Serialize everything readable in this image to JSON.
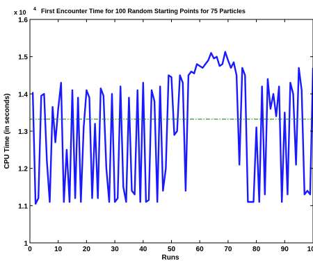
{
  "chart_data": {
    "type": "line",
    "title": "First Encounter Time for 100 Random Starting Points for 75 Particles",
    "xlabel": "Runs",
    "ylabel": "CPU Time (in seconds)",
    "y_multiplier": "x 10",
    "y_exponent": "4",
    "xlim": [
      0,
      100
    ],
    "ylim": [
      1.0,
      1.6
    ],
    "xticks": [
      0,
      10,
      20,
      30,
      40,
      50,
      60,
      70,
      80,
      90,
      100
    ],
    "xtick_labels": [
      "0",
      "10",
      "20",
      "30",
      "40",
      "50",
      "60",
      "70",
      "80",
      "90",
      "100"
    ],
    "yticks": [
      1.0,
      1.1,
      1.2,
      1.3,
      1.4,
      1.5,
      1.6
    ],
    "ytick_labels": [
      "1",
      "1.1",
      "1.2",
      "1.3",
      "1.4",
      "1.5",
      "1.6"
    ],
    "grid": false,
    "series": [
      {
        "style": "solid",
        "color": "#1a1aff",
        "x": [
          1,
          2,
          3,
          4,
          5,
          6,
          7,
          8,
          9,
          10,
          11,
          12,
          13,
          14,
          15,
          16,
          17,
          18,
          19,
          20,
          21,
          22,
          23,
          24,
          25,
          26,
          27,
          28,
          29,
          30,
          31,
          32,
          33,
          34,
          35,
          36,
          37,
          38,
          39,
          40,
          41,
          42,
          43,
          44,
          45,
          46,
          47,
          48,
          49,
          50,
          51,
          52,
          53,
          54,
          55,
          56,
          57,
          58,
          59,
          60,
          61,
          62,
          63,
          64,
          65,
          66,
          67,
          68,
          69,
          70,
          71,
          72,
          73,
          74,
          75,
          76,
          77,
          78,
          79,
          80,
          81,
          82,
          83,
          84,
          85,
          86,
          87,
          88,
          89,
          90,
          91,
          92,
          93,
          94,
          95,
          96,
          97,
          98,
          99,
          100
        ],
        "y": [
          1.405,
          1.105,
          1.12,
          1.395,
          1.4,
          1.22,
          1.11,
          1.365,
          1.27,
          1.36,
          1.43,
          1.11,
          1.25,
          1.11,
          1.41,
          1.12,
          1.39,
          1.11,
          1.31,
          1.41,
          1.39,
          1.12,
          1.32,
          1.12,
          1.415,
          1.395,
          1.2,
          1.11,
          1.4,
          1.11,
          1.12,
          1.42,
          1.15,
          1.11,
          1.39,
          1.14,
          1.13,
          1.41,
          1.11,
          1.43,
          1.11,
          1.115,
          1.41,
          1.38,
          1.11,
          1.42,
          1.14,
          1.2,
          1.45,
          1.445,
          1.29,
          1.3,
          1.45,
          1.43,
          1.14,
          1.45,
          1.46,
          1.455,
          1.48,
          1.475,
          1.47,
          1.48,
          1.49,
          1.51,
          1.495,
          1.5,
          1.475,
          1.48,
          1.513,
          1.49,
          1.47,
          1.485,
          1.45,
          1.21,
          1.47,
          1.45,
          1.11,
          1.11,
          1.11,
          1.31,
          1.11,
          1.42,
          1.13,
          1.44,
          1.36,
          1.4,
          1.34,
          1.42,
          1.11,
          1.35,
          1.13,
          1.43,
          1.4,
          1.21,
          1.47,
          1.41,
          1.13,
          1.14,
          1.13,
          1.47
        ]
      },
      {
        "style": "dashdot",
        "color": "#008000",
        "x": [
          0,
          100
        ],
        "y": [
          1.332,
          1.332
        ]
      }
    ]
  }
}
